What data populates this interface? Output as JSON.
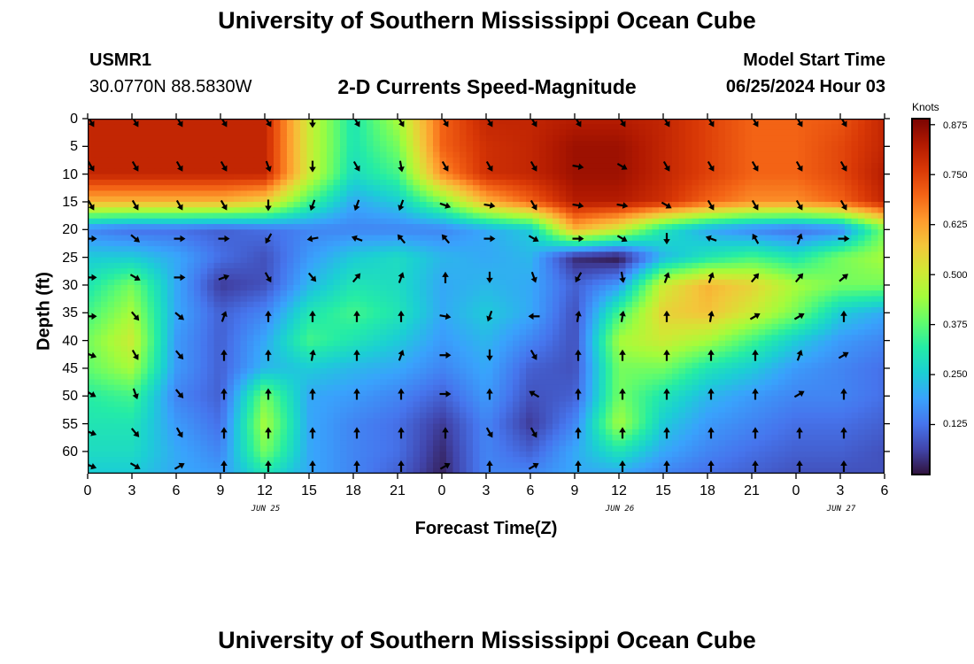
{
  "header": {
    "title": "University of Southern Mississippi Ocean Cube",
    "station": "USMR1",
    "coords": "30.0770N  88.5830W",
    "subtitle": "2-D Currents Speed-Magnitude",
    "model_label": "Model Start Time",
    "model_time": "06/25/2024 Hour 03"
  },
  "footer": {
    "title": "University of Southern Mississippi Ocean Cube"
  },
  "chart_data": {
    "type": "heatmap",
    "title": "2-D Currents Speed-Magnitude",
    "xlabel": "Forecast Time(Z)",
    "ylabel": "Depth (ft)",
    "x_ticks": [
      "0",
      "3",
      "6",
      "9",
      "12",
      "15",
      "18",
      "21",
      "0",
      "3",
      "6",
      "9",
      "12",
      "15",
      "18",
      "21",
      "0",
      "3",
      "6"
    ],
    "x_range_hours": [
      0,
      54
    ],
    "y_ticks": [
      "0",
      "5",
      "10",
      "15",
      "20",
      "25",
      "30",
      "35",
      "40",
      "45",
      "50",
      "55",
      "60"
    ],
    "y_range_ft": [
      0,
      64
    ],
    "y_inverted": true,
    "date_labels": [
      {
        "label": "JUN 25",
        "hour": 12
      },
      {
        "label": "JUN 26",
        "hour": 36
      },
      {
        "label": "JUN 27",
        "hour": 51
      }
    ],
    "colorbar": {
      "title": "Knots",
      "ticks": [
        "0.875",
        "0.750",
        "0.625",
        "0.500",
        "0.375",
        "0.250",
        "0.125"
      ],
      "range": [
        0,
        0.89
      ],
      "stops": [
        "#30123b",
        "#4145ab",
        "#4675ed",
        "#39a2fc",
        "#1bcfd4",
        "#24eca6",
        "#61fc6c",
        "#a4fc3b",
        "#d1e834",
        "#f3c63a",
        "#fe9b2d",
        "#f36315",
        "#d93806",
        "#b11901",
        "#7a0402"
      ]
    },
    "hours": [
      0,
      3,
      6,
      9,
      12,
      15,
      18,
      21,
      24,
      27,
      30,
      33,
      36,
      39,
      42,
      45,
      48,
      51,
      54
    ],
    "depths": [
      0,
      5,
      10,
      15,
      20,
      25,
      30,
      35,
      40,
      45,
      50,
      55,
      60,
      64
    ],
    "speed_knots": [
      [
        0.8,
        0.8,
        0.8,
        0.8,
        0.8,
        0.5,
        0.3,
        0.45,
        0.7,
        0.8,
        0.8,
        0.82,
        0.82,
        0.8,
        0.75,
        0.7,
        0.7,
        0.72,
        0.8
      ],
      [
        0.8,
        0.8,
        0.8,
        0.8,
        0.8,
        0.5,
        0.3,
        0.4,
        0.7,
        0.78,
        0.8,
        0.85,
        0.85,
        0.8,
        0.75,
        0.7,
        0.7,
        0.74,
        0.8
      ],
      [
        0.8,
        0.8,
        0.8,
        0.8,
        0.8,
        0.5,
        0.28,
        0.35,
        0.65,
        0.78,
        0.8,
        0.85,
        0.85,
        0.8,
        0.75,
        0.7,
        0.7,
        0.74,
        0.82
      ],
      [
        0.6,
        0.6,
        0.6,
        0.6,
        0.55,
        0.35,
        0.2,
        0.25,
        0.4,
        0.6,
        0.7,
        0.82,
        0.82,
        0.78,
        0.7,
        0.65,
        0.65,
        0.7,
        0.8
      ],
      [
        0.15,
        0.12,
        0.12,
        0.1,
        0.12,
        0.15,
        0.15,
        0.15,
        0.15,
        0.2,
        0.25,
        0.6,
        0.5,
        0.3,
        0.2,
        0.15,
        0.12,
        0.15,
        0.4
      ],
      [
        0.25,
        0.25,
        0.2,
        0.12,
        0.08,
        0.18,
        0.25,
        0.28,
        0.22,
        0.2,
        0.22,
        0.03,
        0.0,
        0.22,
        0.3,
        0.35,
        0.3,
        0.4,
        0.45
      ],
      [
        0.3,
        0.4,
        0.2,
        0.05,
        0.08,
        0.22,
        0.3,
        0.28,
        0.2,
        0.22,
        0.2,
        0.1,
        0.18,
        0.5,
        0.6,
        0.55,
        0.45,
        0.4,
        0.4
      ],
      [
        0.35,
        0.45,
        0.2,
        0.1,
        0.15,
        0.3,
        0.35,
        0.3,
        0.2,
        0.25,
        0.2,
        0.08,
        0.35,
        0.55,
        0.58,
        0.5,
        0.4,
        0.25,
        0.2
      ],
      [
        0.4,
        0.5,
        0.18,
        0.1,
        0.2,
        0.35,
        0.3,
        0.25,
        0.18,
        0.22,
        0.15,
        0.08,
        0.45,
        0.5,
        0.45,
        0.35,
        0.25,
        0.18,
        0.15
      ],
      [
        0.38,
        0.45,
        0.18,
        0.1,
        0.22,
        0.25,
        0.22,
        0.2,
        0.15,
        0.2,
        0.1,
        0.08,
        0.4,
        0.4,
        0.3,
        0.25,
        0.18,
        0.15,
        0.12
      ],
      [
        0.32,
        0.35,
        0.15,
        0.1,
        0.4,
        0.2,
        0.18,
        0.15,
        0.1,
        0.18,
        0.08,
        0.1,
        0.4,
        0.3,
        0.22,
        0.18,
        0.15,
        0.15,
        0.12
      ],
      [
        0.3,
        0.3,
        0.18,
        0.12,
        0.45,
        0.2,
        0.15,
        0.12,
        0.05,
        0.15,
        0.05,
        0.15,
        0.45,
        0.25,
        0.18,
        0.15,
        0.12,
        0.12,
        0.1
      ],
      [
        0.28,
        0.28,
        0.2,
        0.15,
        0.4,
        0.2,
        0.15,
        0.12,
        0.03,
        0.15,
        0.1,
        0.2,
        0.3,
        0.2,
        0.15,
        0.12,
        0.1,
        0.1,
        0.08
      ],
      [
        0.25,
        0.25,
        0.2,
        0.18,
        0.3,
        0.2,
        0.15,
        0.1,
        0.02,
        0.15,
        0.15,
        0.2,
        0.2,
        0.15,
        0.12,
        0.1,
        0.08,
        0.08,
        0.08
      ]
    ],
    "vectors": {
      "columns_hours": [
        0,
        3,
        6,
        9,
        12,
        15,
        18,
        21,
        24,
        27,
        30,
        33,
        36,
        39,
        42,
        45,
        48,
        51
      ],
      "rows_depths": [
        0,
        8,
        15,
        21,
        28,
        35,
        42,
        49,
        56,
        62
      ],
      "direction_deg": [
        [
          150,
          150,
          150,
          150,
          150,
          180,
          150,
          150,
          150,
          150,
          150,
          150,
          150,
          150,
          150,
          150,
          150,
          150
        ],
        [
          150,
          150,
          150,
          150,
          160,
          180,
          150,
          170,
          150,
          150,
          150,
          100,
          120,
          150,
          150,
          150,
          150,
          150
        ],
        [
          150,
          150,
          150,
          150,
          180,
          200,
          200,
          200,
          110,
          100,
          150,
          100,
          100,
          120,
          150,
          150,
          150,
          150
        ],
        [
          90,
          130,
          90,
          90,
          210,
          260,
          290,
          320,
          320,
          90,
          120,
          90,
          120,
          180,
          290,
          330,
          20,
          90
        ],
        [
          90,
          120,
          90,
          70,
          150,
          140,
          40,
          20,
          0,
          180,
          160,
          210,
          170,
          20,
          20,
          40,
          40,
          50
        ],
        [
          90,
          140,
          130,
          20,
          0,
          0,
          0,
          0,
          100,
          200,
          270,
          10,
          10,
          0,
          10,
          60,
          60,
          0
        ],
        [
          110,
          150,
          140,
          0,
          0,
          10,
          0,
          20,
          90,
          180,
          150,
          0,
          0,
          0,
          0,
          0,
          20,
          60
        ],
        [
          120,
          160,
          140,
          0,
          0,
          0,
          0,
          0,
          90,
          0,
          300,
          0,
          0,
          0,
          0,
          0,
          60,
          0
        ],
        [
          110,
          140,
          150,
          0,
          0,
          0,
          0,
          0,
          0,
          150,
          150,
          0,
          0,
          0,
          0,
          0,
          0,
          0
        ],
        [
          110,
          120,
          60,
          0,
          0,
          0,
          0,
          0,
          60,
          0,
          60,
          0,
          0,
          0,
          0,
          0,
          0,
          0
        ]
      ]
    }
  }
}
